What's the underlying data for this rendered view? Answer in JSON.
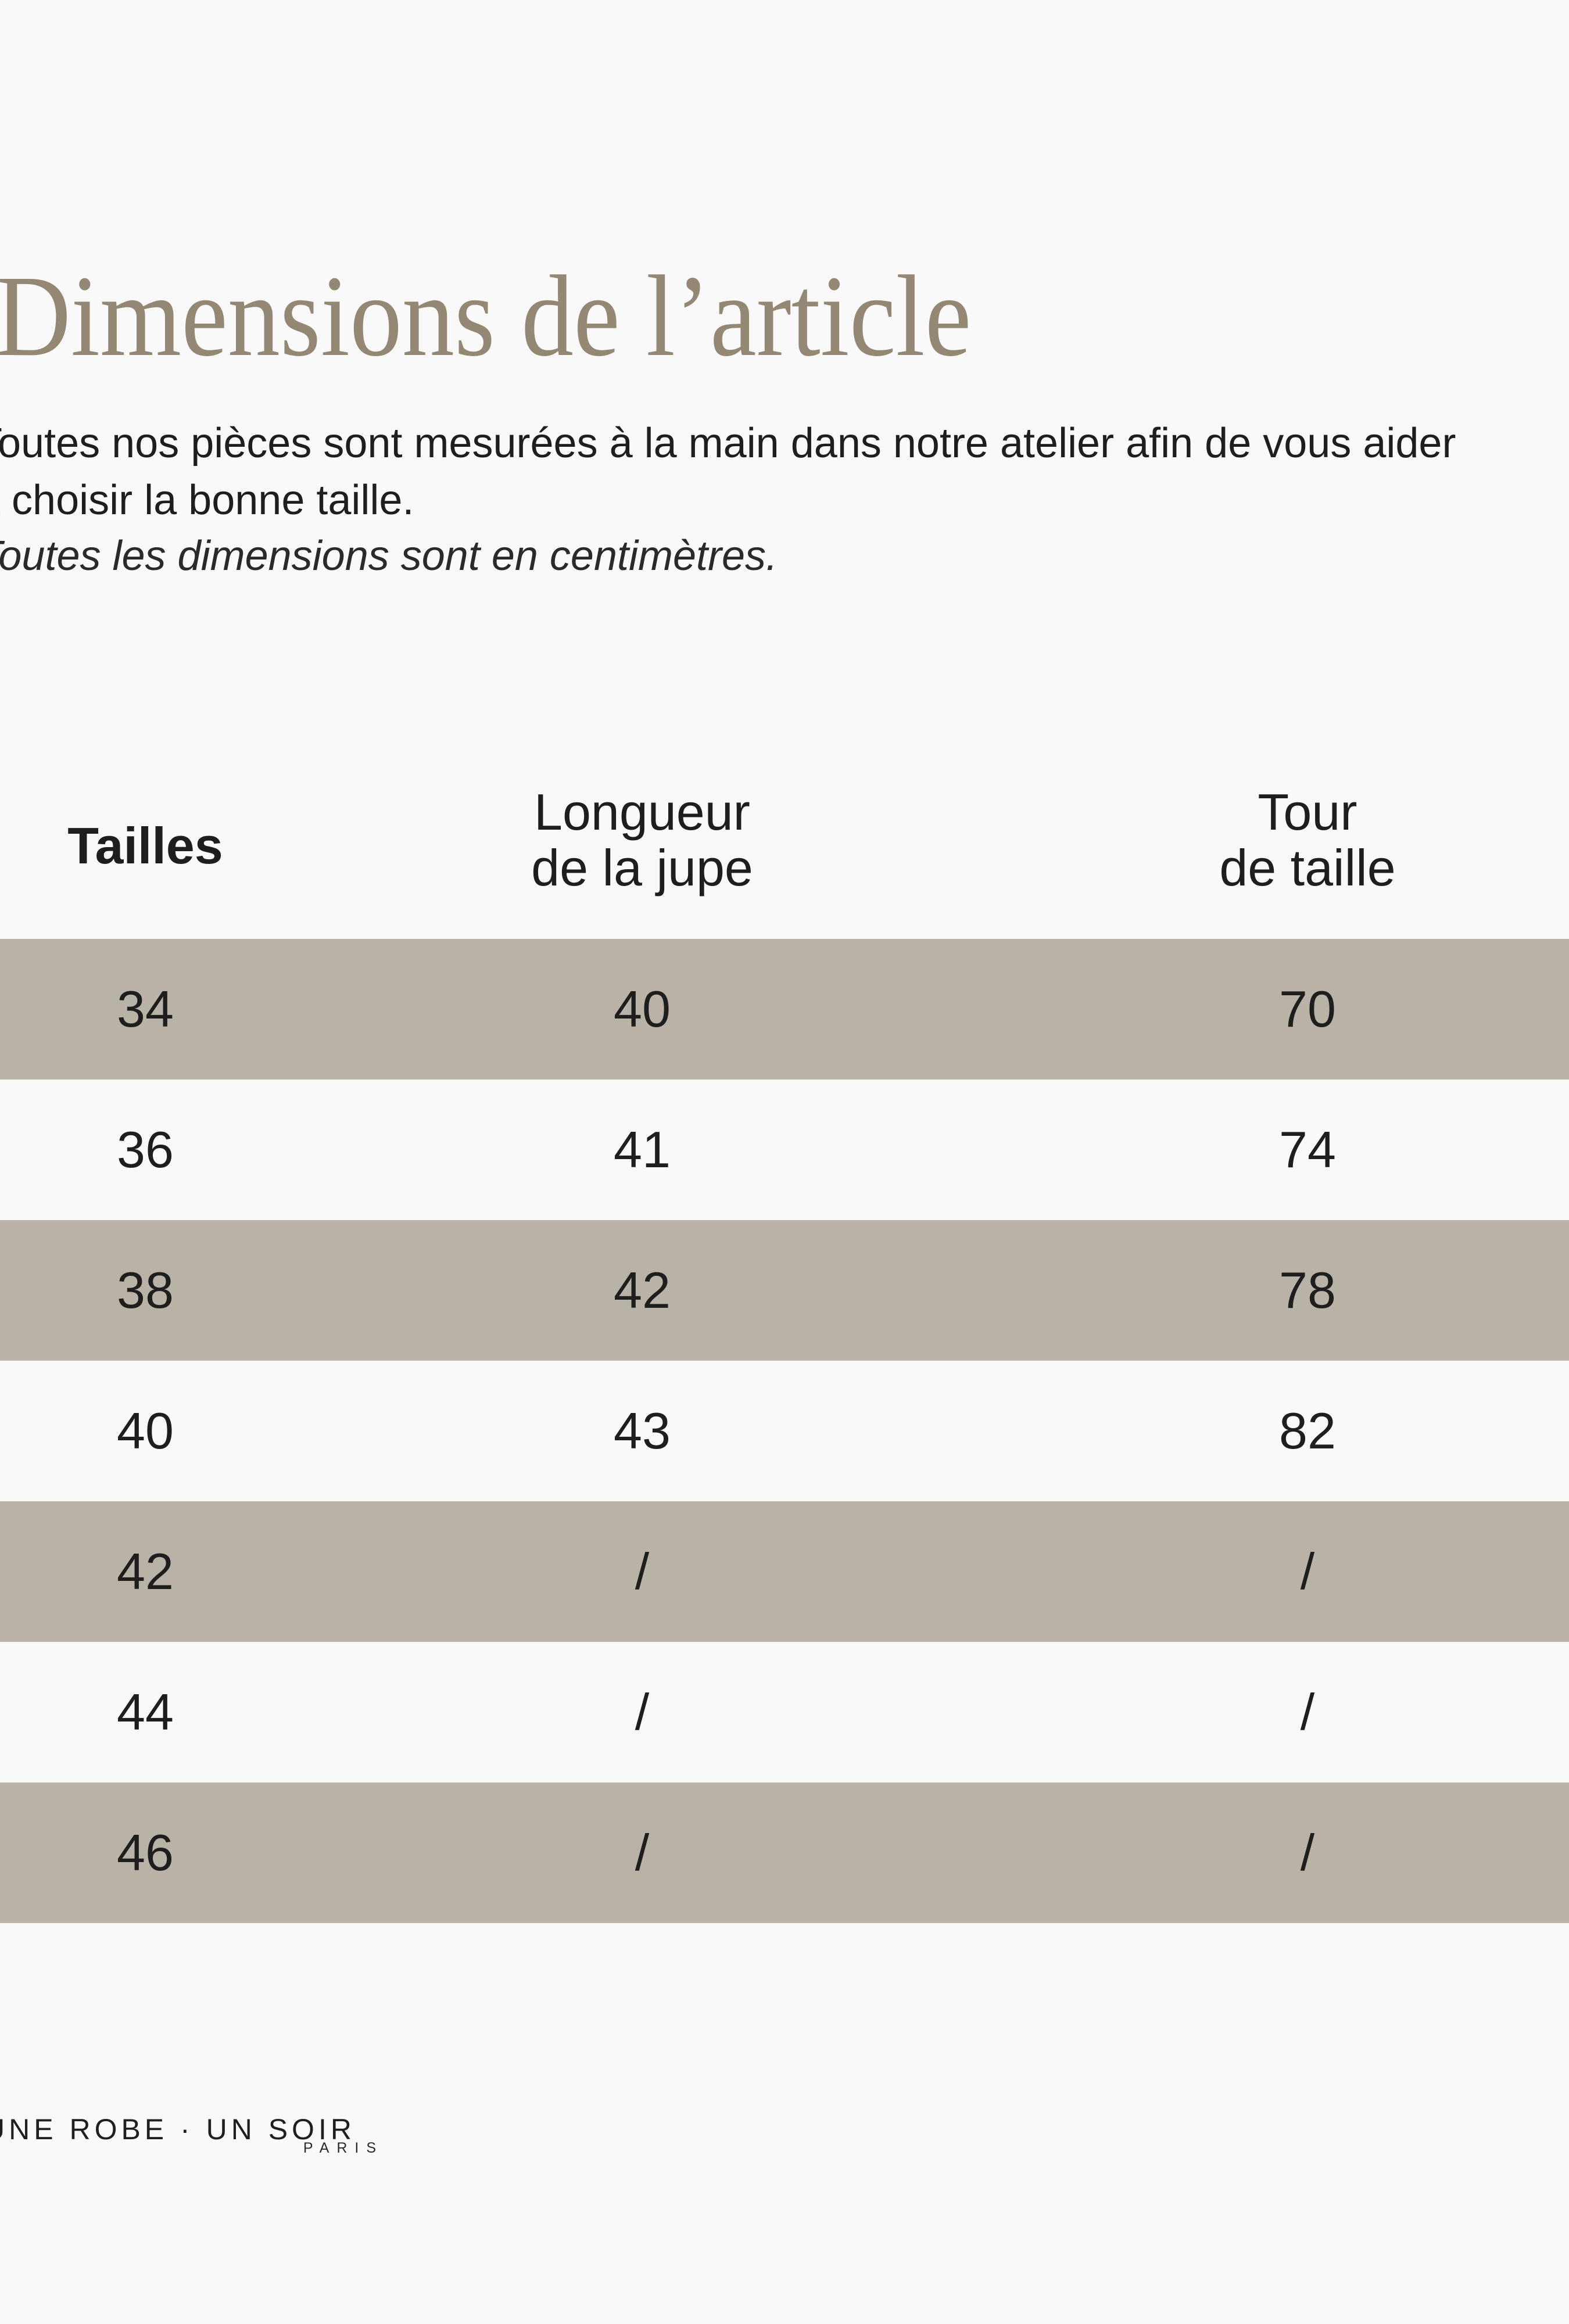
{
  "page_title": "Dimensions de l’article",
  "intro": {
    "line1": "Toutes nos pièces sont mesurées à la main dans notre atelier afin de vous aider",
    "line2": "à choisir la bonne taille.",
    "note": "Toutes les dimensions sont en centimètres."
  },
  "table": {
    "headers": [
      {
        "line1": "Tailles",
        "line2": ""
      },
      {
        "line1": "Longueur",
        "line2": "de la jupe"
      },
      {
        "line1": "Tour",
        "line2": "de taille"
      }
    ],
    "rows": [
      {
        "taille": "34",
        "longueur": "40",
        "tour": "70"
      },
      {
        "taille": "36",
        "longueur": "41",
        "tour": "74"
      },
      {
        "taille": "38",
        "longueur": "42",
        "tour": "78"
      },
      {
        "taille": "40",
        "longueur": "43",
        "tour": "82"
      },
      {
        "taille": "42",
        "longueur": "/",
        "tour": "/"
      },
      {
        "taille": "44",
        "longueur": "/",
        "tour": "/"
      },
      {
        "taille": "46",
        "longueur": "/",
        "tour": "/"
      }
    ]
  },
  "footer": {
    "brand": "UNE ROBE · UN SOIR",
    "city": "PARIS"
  },
  "colors": {
    "background": "#f9f9f9",
    "row_taupe": "#b9b2a7",
    "title": "#948875",
    "text": "#1e1e1e"
  }
}
